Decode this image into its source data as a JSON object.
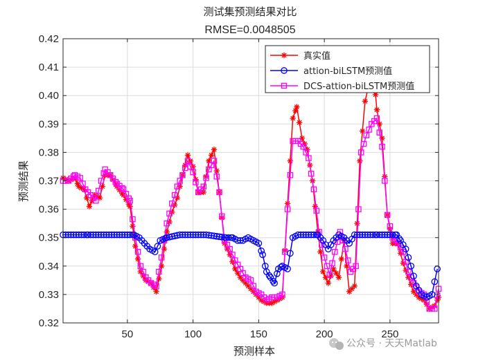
{
  "chart_data": {
    "type": "line",
    "title": "测试集预测结果对比",
    "subtitle": "RMSE=0.0048505",
    "xlabel": "预测样本",
    "ylabel": "预测结果",
    "xlim": [
      1,
      287
    ],
    "ylim": [
      0.32,
      0.42
    ],
    "xticks": [
      50,
      100,
      150,
      200,
      250
    ],
    "yticks": [
      0.32,
      0.33,
      0.34,
      0.35,
      0.36,
      0.37,
      0.38,
      0.39,
      0.4,
      0.41,
      0.42
    ],
    "grid": true,
    "legend_position": "top-right",
    "series": [
      {
        "name": "真实值",
        "color": "#ff0000",
        "marker": "asterisk",
        "points": [
          [
            1,
            0.371
          ],
          [
            5,
            0.37
          ],
          [
            10,
            0.371
          ],
          [
            13,
            0.368
          ],
          [
            17,
            0.367
          ],
          [
            21,
            0.361
          ],
          [
            25,
            0.365
          ],
          [
            29,
            0.364
          ],
          [
            33,
            0.372
          ],
          [
            37,
            0.372
          ],
          [
            42,
            0.368
          ],
          [
            47,
            0.365
          ],
          [
            52,
            0.361
          ],
          [
            56,
            0.347
          ],
          [
            60,
            0.338
          ],
          [
            64,
            0.335
          ],
          [
            68,
            0.334
          ],
          [
            72,
            0.331
          ],
          [
            76,
            0.34
          ],
          [
            80,
            0.352
          ],
          [
            84,
            0.359
          ],
          [
            88,
            0.364
          ],
          [
            92,
            0.372
          ],
          [
            96,
            0.379
          ],
          [
            100,
            0.375
          ],
          [
            104,
            0.366
          ],
          [
            108,
            0.366
          ],
          [
            112,
            0.377
          ],
          [
            116,
            0.381
          ],
          [
            120,
            0.366
          ],
          [
            124,
            0.348
          ],
          [
            128,
            0.344
          ],
          [
            132,
            0.339
          ],
          [
            136,
            0.336
          ],
          [
            140,
            0.334
          ],
          [
            144,
            0.332
          ],
          [
            148,
            0.33
          ],
          [
            152,
            0.328
          ],
          [
            156,
            0.327
          ],
          [
            160,
            0.327
          ],
          [
            164,
            0.328
          ],
          [
            168,
            0.329
          ],
          [
            172,
            0.362
          ],
          [
            176,
            0.392
          ],
          [
            179,
            0.396
          ],
          [
            183,
            0.385
          ],
          [
            187,
            0.381
          ],
          [
            191,
            0.37
          ],
          [
            195,
            0.352
          ],
          [
            199,
            0.338
          ],
          [
            203,
            0.334
          ],
          [
            207,
            0.339
          ],
          [
            211,
            0.336
          ],
          [
            215,
            0.349
          ],
          [
            219,
            0.331
          ],
          [
            223,
            0.333
          ],
          [
            227,
            0.377
          ],
          [
            231,
            0.398
          ],
          [
            234,
            0.404
          ],
          [
            237,
            0.411
          ],
          [
            240,
            0.395
          ],
          [
            244,
            0.385
          ],
          [
            248,
            0.358
          ],
          [
            252,
            0.348
          ],
          [
            256,
            0.348
          ],
          [
            260,
            0.341
          ],
          [
            264,
            0.336
          ],
          [
            268,
            0.331
          ],
          [
            272,
            0.329
          ],
          [
            276,
            0.328
          ],
          [
            280,
            0.325
          ],
          [
            284,
            0.326
          ],
          [
            287,
            0.329
          ]
        ]
      },
      {
        "name": "attion-biLSTM预测值",
        "color": "#0000ff",
        "marker": "circle",
        "points": [
          [
            1,
            0.351
          ],
          [
            20,
            0.351
          ],
          [
            40,
            0.351
          ],
          [
            55,
            0.351
          ],
          [
            59,
            0.35
          ],
          [
            63,
            0.348
          ],
          [
            67,
            0.346
          ],
          [
            71,
            0.345
          ],
          [
            75,
            0.349
          ],
          [
            80,
            0.35
          ],
          [
            90,
            0.351
          ],
          [
            110,
            0.351
          ],
          [
            125,
            0.35
          ],
          [
            130,
            0.35
          ],
          [
            134,
            0.349
          ],
          [
            138,
            0.349
          ],
          [
            142,
            0.35
          ],
          [
            146,
            0.349
          ],
          [
            150,
            0.348
          ],
          [
            153,
            0.344
          ],
          [
            156,
            0.338
          ],
          [
            159,
            0.336
          ],
          [
            162,
            0.334
          ],
          [
            165,
            0.339
          ],
          [
            168,
            0.34
          ],
          [
            172,
            0.339
          ],
          [
            176,
            0.35
          ],
          [
            180,
            0.351
          ],
          [
            195,
            0.351
          ],
          [
            199,
            0.349
          ],
          [
            203,
            0.346
          ],
          [
            207,
            0.349
          ],
          [
            211,
            0.351
          ],
          [
            215,
            0.35
          ],
          [
            219,
            0.348
          ],
          [
            223,
            0.351
          ],
          [
            240,
            0.351
          ],
          [
            255,
            0.351
          ],
          [
            258,
            0.349
          ],
          [
            262,
            0.346
          ],
          [
            266,
            0.34
          ],
          [
            270,
            0.333
          ],
          [
            274,
            0.33
          ],
          [
            278,
            0.329
          ],
          [
            282,
            0.33
          ],
          [
            286,
            0.339
          ]
        ]
      },
      {
        "name": "DCS-attion-biLSTM预测值",
        "color": "#ff00ff",
        "marker": "square",
        "points": [
          [
            1,
            0.37
          ],
          [
            5,
            0.37
          ],
          [
            10,
            0.372
          ],
          [
            14,
            0.371
          ],
          [
            18,
            0.367
          ],
          [
            22,
            0.365
          ],
          [
            26,
            0.363
          ],
          [
            30,
            0.37
          ],
          [
            33,
            0.374
          ],
          [
            37,
            0.372
          ],
          [
            42,
            0.369
          ],
          [
            47,
            0.367
          ],
          [
            52,
            0.363
          ],
          [
            56,
            0.35
          ],
          [
            60,
            0.34
          ],
          [
            64,
            0.336
          ],
          [
            68,
            0.334
          ],
          [
            72,
            0.333
          ],
          [
            76,
            0.343
          ],
          [
            80,
            0.355
          ],
          [
            84,
            0.362
          ],
          [
            88,
            0.368
          ],
          [
            92,
            0.372
          ],
          [
            96,
            0.377
          ],
          [
            100,
            0.373
          ],
          [
            104,
            0.366
          ],
          [
            108,
            0.368
          ],
          [
            112,
            0.374
          ],
          [
            116,
            0.377
          ],
          [
            120,
            0.366
          ],
          [
            124,
            0.349
          ],
          [
            128,
            0.346
          ],
          [
            132,
            0.342
          ],
          [
            136,
            0.339
          ],
          [
            140,
            0.336
          ],
          [
            144,
            0.335
          ],
          [
            148,
            0.331
          ],
          [
            152,
            0.33
          ],
          [
            156,
            0.328
          ],
          [
            160,
            0.329
          ],
          [
            164,
            0.329
          ],
          [
            168,
            0.33
          ],
          [
            172,
            0.36
          ],
          [
            176,
            0.384
          ],
          [
            180,
            0.384
          ],
          [
            184,
            0.382
          ],
          [
            188,
            0.378
          ],
          [
            192,
            0.367
          ],
          [
            196,
            0.352
          ],
          [
            200,
            0.343
          ],
          [
            204,
            0.337
          ],
          [
            208,
            0.345
          ],
          [
            212,
            0.352
          ],
          [
            216,
            0.346
          ],
          [
            220,
            0.338
          ],
          [
            224,
            0.34
          ],
          [
            228,
            0.38
          ],
          [
            232,
            0.386
          ],
          [
            236,
            0.39
          ],
          [
            240,
            0.392
          ],
          [
            244,
            0.382
          ],
          [
            248,
            0.358
          ],
          [
            252,
            0.35
          ],
          [
            256,
            0.348
          ],
          [
            260,
            0.345
          ],
          [
            264,
            0.338
          ],
          [
            268,
            0.334
          ],
          [
            272,
            0.331
          ],
          [
            276,
            0.33
          ],
          [
            280,
            0.325
          ],
          [
            284,
            0.325
          ],
          [
            287,
            0.332
          ]
        ]
      }
    ]
  },
  "watermark": {
    "icon": "wechat-icon",
    "text": "公众号 · 天天Matlab"
  }
}
